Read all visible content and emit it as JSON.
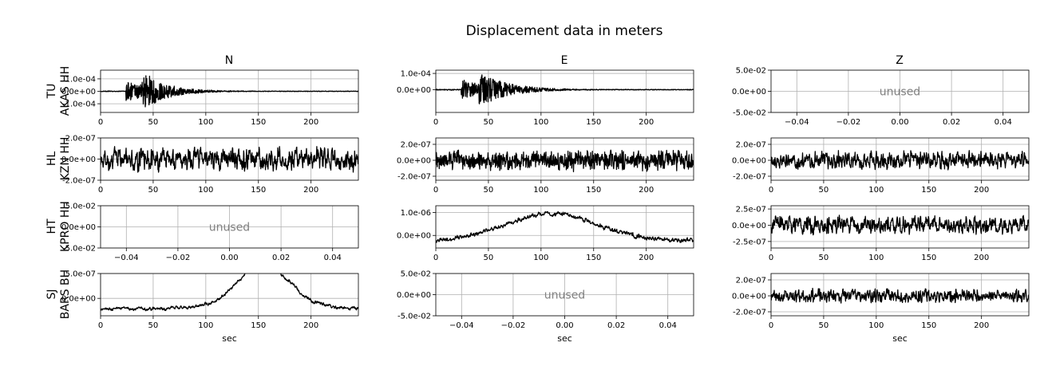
{
  "title": "Displacement data in meters",
  "columns": [
    "N",
    "E",
    "Z"
  ],
  "rows": [
    {
      "network": "TU",
      "station": "AKAS HH"
    },
    {
      "network": "HL",
      "station": "KZN HH"
    },
    {
      "network": "HT",
      "station": "KPRO HH"
    },
    {
      "network": "SJ",
      "station": "BARS BH"
    }
  ],
  "unused_label": "unused",
  "xlabel": "sec",
  "colors": {
    "trace": "#000000",
    "unused_text": "#808080",
    "grid": "#b0b0b0"
  },
  "chart_data": [
    {
      "row": 0,
      "col": 0,
      "type": "line",
      "station": "AKAS HH",
      "component": "N",
      "xlim": [
        0,
        245
      ],
      "ylim": [
        -0.00017,
        0.00017
      ],
      "xticks": [
        "0",
        "50",
        "100",
        "150",
        "200"
      ],
      "yticks": [
        "1.0e-04",
        "0.0e+00",
        "-1.0e-04"
      ],
      "grid": true,
      "trace": {
        "kind": "event",
        "onset": 24,
        "peak_time": 45,
        "peak": 0.00015,
        "pre_amp": 2e-06,
        "decay": 22
      }
    },
    {
      "row": 0,
      "col": 1,
      "type": "line",
      "station": "AKAS HH",
      "component": "E",
      "xlim": [
        0,
        245
      ],
      "ylim": [
        -0.00014,
        0.00012
      ],
      "xticks": [
        "0",
        "50",
        "100",
        "150",
        "200"
      ],
      "yticks": [
        "1.0e-04",
        "0.0e+00"
      ],
      "grid": true,
      "trace": {
        "kind": "event",
        "onset": 24,
        "peak_time": 47,
        "peak": 0.00011,
        "pre_amp": 2e-06,
        "decay": 25
      }
    },
    {
      "row": 0,
      "col": 2,
      "type": "line",
      "station": "AKAS HH",
      "component": "Z",
      "unused": true,
      "xlim": [
        -0.05,
        0.05
      ],
      "ylim": [
        -0.05,
        0.05
      ],
      "xticks": [
        "−0.04",
        "−0.02",
        "0.00",
        "0.02",
        "0.04"
      ],
      "yticks": [
        "5.0e-02",
        "0.0e+00",
        "-5.0e-02"
      ],
      "grid": true
    },
    {
      "row": 1,
      "col": 0,
      "type": "line",
      "station": "KZN HH",
      "component": "N",
      "xlim": [
        0,
        245
      ],
      "ylim": [
        -2e-07,
        2e-07
      ],
      "xticks": [
        "0",
        "50",
        "100",
        "150",
        "200"
      ],
      "yticks": [
        "2.0e-07",
        "0.0e+00",
        "-2.0e-07"
      ],
      "grid": true,
      "trace": {
        "kind": "noise",
        "amp": 8e-08,
        "period": 2.6,
        "trend": 0
      }
    },
    {
      "row": 1,
      "col": 1,
      "type": "line",
      "station": "KZN HH",
      "component": "E",
      "xlim": [
        0,
        245
      ],
      "ylim": [
        -2.5e-07,
        2.8e-07
      ],
      "xticks": [
        "0",
        "50",
        "100",
        "150",
        "200"
      ],
      "yticks": [
        "2.0e-07",
        "0.0e+00",
        "-2.0e-07"
      ],
      "grid": true,
      "trace": {
        "kind": "noise",
        "amp": 9e-08,
        "period": 1.2,
        "trend": 0
      }
    },
    {
      "row": 1,
      "col": 2,
      "type": "line",
      "station": "KZN HH",
      "component": "Z",
      "xlim": [
        0,
        245
      ],
      "ylim": [
        -2.5e-07,
        2.8e-07
      ],
      "xticks": [
        "0",
        "50",
        "100",
        "150",
        "200"
      ],
      "yticks": [
        "2.0e-07",
        "0.0e+00",
        "-2.0e-07"
      ],
      "grid": true,
      "trace": {
        "kind": "noise",
        "amp": 8e-08,
        "period": 2.4,
        "trend": 0
      }
    },
    {
      "row": 2,
      "col": 0,
      "type": "line",
      "station": "KPRO HH",
      "component": "N",
      "unused": true,
      "xlim": [
        -0.05,
        0.05
      ],
      "ylim": [
        -0.05,
        0.05
      ],
      "xticks": [
        "−0.04",
        "−0.02",
        "0.00",
        "0.02",
        "0.04"
      ],
      "yticks": [
        "5.0e-02",
        "0.0e+00",
        "-5.0e-02"
      ],
      "grid": true
    },
    {
      "row": 2,
      "col": 1,
      "type": "line",
      "station": "KPRO HH",
      "component": "E",
      "xlim": [
        0,
        245
      ],
      "ylim": [
        -5.5e-07,
        1.3e-06
      ],
      "xticks": [
        "0",
        "50",
        "100",
        "150",
        "200"
      ],
      "yticks": [
        "1.0e-06",
        "0.0e+00"
      ],
      "grid": true,
      "trace": {
        "kind": "swell",
        "amp": 7e-08,
        "period": 3.0,
        "peak_time": 110,
        "peak": 9.5e-07,
        "width": 62,
        "base": -2.5e-07
      }
    },
    {
      "row": 2,
      "col": 2,
      "type": "line",
      "station": "KPRO HH",
      "component": "Z",
      "xlim": [
        0,
        245
      ],
      "ylim": [
        -3.5e-07,
        3e-07
      ],
      "xticks": [
        "0",
        "50",
        "100",
        "150",
        "200"
      ],
      "yticks": [
        "2.5e-07",
        "0.0e+00",
        "-2.5e-07"
      ],
      "grid": true,
      "trace": {
        "kind": "noise",
        "amp": 1e-07,
        "period": 2.4,
        "trend": 0
      }
    },
    {
      "row": 3,
      "col": 0,
      "type": "line",
      "station": "BARS BH",
      "component": "N",
      "xlim": [
        0,
        245
      ],
      "ylim": [
        -3.5e-07,
        5e-07
      ],
      "xticks": [
        "0",
        "50",
        "100",
        "150",
        "200"
      ],
      "yticks": [
        "5.0e-07",
        "0.0e+00"
      ],
      "grid": true,
      "trace": {
        "kind": "swell",
        "amp": 2.5e-08,
        "period": 3.5,
        "peak_time": 155,
        "peak": 6.8e-07,
        "width": 35,
        "base": -2e-07
      }
    },
    {
      "row": 3,
      "col": 1,
      "type": "line",
      "station": "BARS BH",
      "component": "E",
      "unused": true,
      "xlim": [
        -0.05,
        0.05
      ],
      "ylim": [
        -0.05,
        0.05
      ],
      "xticks": [
        "−0.04",
        "−0.02",
        "0.00",
        "0.02",
        "0.04"
      ],
      "yticks": [
        "5.0e-02",
        "0.0e+00",
        "-5.0e-02"
      ],
      "grid": true
    },
    {
      "row": 3,
      "col": 2,
      "type": "line",
      "station": "BARS BH",
      "component": "Z",
      "xlim": [
        0,
        245
      ],
      "ylim": [
        -2.5e-07,
        2.8e-07
      ],
      "xticks": [
        "0",
        "50",
        "100",
        "150",
        "200"
      ],
      "yticks": [
        "2.0e-07",
        "0.0e+00",
        "-2.0e-07"
      ],
      "grid": true,
      "trace": {
        "kind": "noise",
        "amp": 6e-08,
        "period": 2.2,
        "trend": 0
      }
    }
  ]
}
